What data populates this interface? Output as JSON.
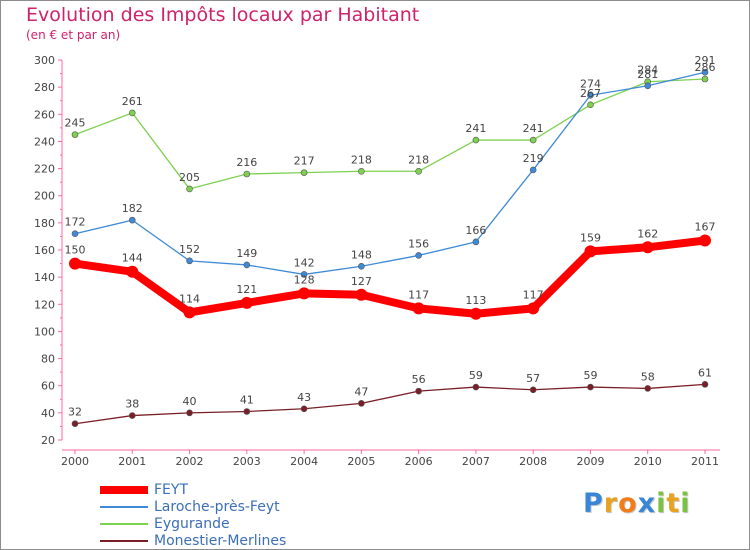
{
  "title": "Evolution des Impôts locaux par Habitant",
  "subtitle": "(en € et par an)",
  "logo": {
    "letters": [
      {
        "ch": "P",
        "color": "#3a86d6"
      },
      {
        "ch": "r",
        "color": "#e8a21f"
      },
      {
        "ch": "o",
        "color": "#f07d1a"
      },
      {
        "ch": "x",
        "color": "#3a86d6"
      },
      {
        "ch": "i",
        "color": "#7cc242"
      },
      {
        "ch": "t",
        "color": "#e8a21f"
      },
      {
        "ch": "i",
        "color": "#7cc242"
      }
    ]
  },
  "chart_data": {
    "type": "line",
    "title": "Evolution des Impôts locaux par Habitant",
    "subtitle": "(en € et par an)",
    "x": [
      "2000",
      "2001",
      "2002",
      "2003",
      "2004",
      "2005",
      "2006",
      "2007",
      "2008",
      "2009",
      "2010",
      "2011"
    ],
    "ylim": [
      20,
      300
    ],
    "yticks": [
      20,
      40,
      60,
      80,
      100,
      120,
      140,
      160,
      180,
      200,
      220,
      240,
      260,
      280,
      300
    ],
    "grid": false,
    "legend_position": "bottom-left",
    "series": [
      {
        "name": "FEYT",
        "color": "#ff0000",
        "values": [
          150,
          144,
          114,
          121,
          128,
          127,
          117,
          113,
          117,
          159,
          162,
          167
        ]
      },
      {
        "name": "Laroche-près-Feyt",
        "color": "#3e8ad6",
        "values": [
          172,
          182,
          152,
          149,
          142,
          148,
          156,
          166,
          219,
          274,
          281,
          291
        ]
      },
      {
        "name": "Eygurande",
        "color": "#7ed050",
        "values": [
          245,
          261,
          205,
          216,
          217,
          218,
          218,
          241,
          241,
          267,
          284,
          286
        ]
      },
      {
        "name": "Monestier-Merlines",
        "color": "#7a1f27",
        "values": [
          32,
          38,
          40,
          41,
          43,
          47,
          56,
          59,
          57,
          59,
          58,
          61
        ]
      }
    ]
  }
}
